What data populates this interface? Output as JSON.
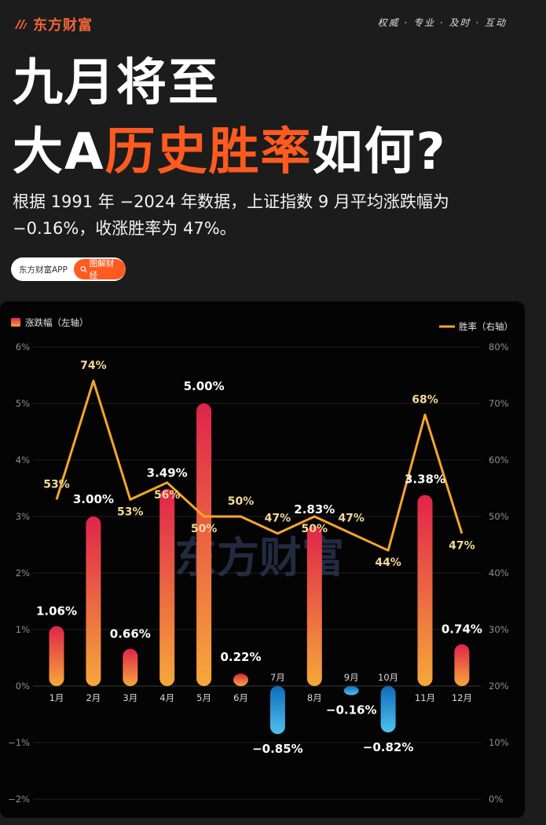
{
  "header": {
    "brand_name": "东方财富",
    "tagline": "权威 · 专业 · 及时 · 互动"
  },
  "headline": {
    "line1": "九月将至",
    "line2_pre": "大A",
    "line2_accent": "历史胜率",
    "line2_post": "如何?"
  },
  "summary": "根据 1991 年 −2024 年数据，上证指数 9 月平均涨跌幅为 −0.16%，收涨胜率为 47%。",
  "pill": {
    "left_label": "东方财富APP",
    "button_label": "图解财经"
  },
  "colors": {
    "accent": "#ff5a1f",
    "brand": "#f0643a",
    "line": "#f4a62a",
    "up_top": "#e0244a",
    "up_bottom": "#f6a83a",
    "down_top": "#0f6cb8",
    "down_bottom": "#4fc1f0"
  },
  "chart_data": {
    "type": "bar",
    "categories": [
      "1月",
      "2月",
      "3月",
      "4月",
      "5月",
      "6月",
      "7月",
      "8月",
      "9月",
      "10月",
      "11月",
      "12月"
    ],
    "series": [
      {
        "name": "涨跌幅（左轴）",
        "kind": "bar",
        "axis": "left",
        "values": [
          1.06,
          3.0,
          0.66,
          3.49,
          5.0,
          0.22,
          -0.85,
          2.83,
          -0.16,
          -0.82,
          3.38,
          0.74
        ],
        "labels": [
          "1.06%",
          "3.00%",
          "0.66%",
          "3.49%",
          "5.00%",
          "0.22%",
          "−0.85%",
          "2.83%",
          "−0.16%",
          "−0.82%",
          "3.38%",
          "0.74%"
        ]
      },
      {
        "name": "胜率（右轴）",
        "kind": "line",
        "axis": "right",
        "values": [
          53,
          74,
          53,
          56,
          50,
          50,
          47,
          50,
          47,
          44,
          68,
          47
        ],
        "labels": [
          "53%",
          "74%",
          "53%",
          "56%",
          "50%",
          "50%",
          "47%",
          "50%",
          "47%",
          "44%",
          "68%",
          "47%"
        ]
      }
    ],
    "left_axis": {
      "ticks": [
        "6%",
        "5%",
        "4%",
        "3%",
        "2%",
        "1%",
        "0%",
        "−1%",
        "−2%"
      ],
      "ylim": [
        -2,
        6
      ]
    },
    "right_axis": {
      "ticks": [
        "80%",
        "70%",
        "60%",
        "50%",
        "40%",
        "30%",
        "20%",
        "10%",
        "0%"
      ],
      "ylim": [
        0,
        80
      ]
    },
    "legend_left": "涨跌幅（左轴）",
    "legend_right": "胜率（右轴）",
    "legend_placement": "top",
    "grid": true,
    "watermark": "东方财富"
  }
}
